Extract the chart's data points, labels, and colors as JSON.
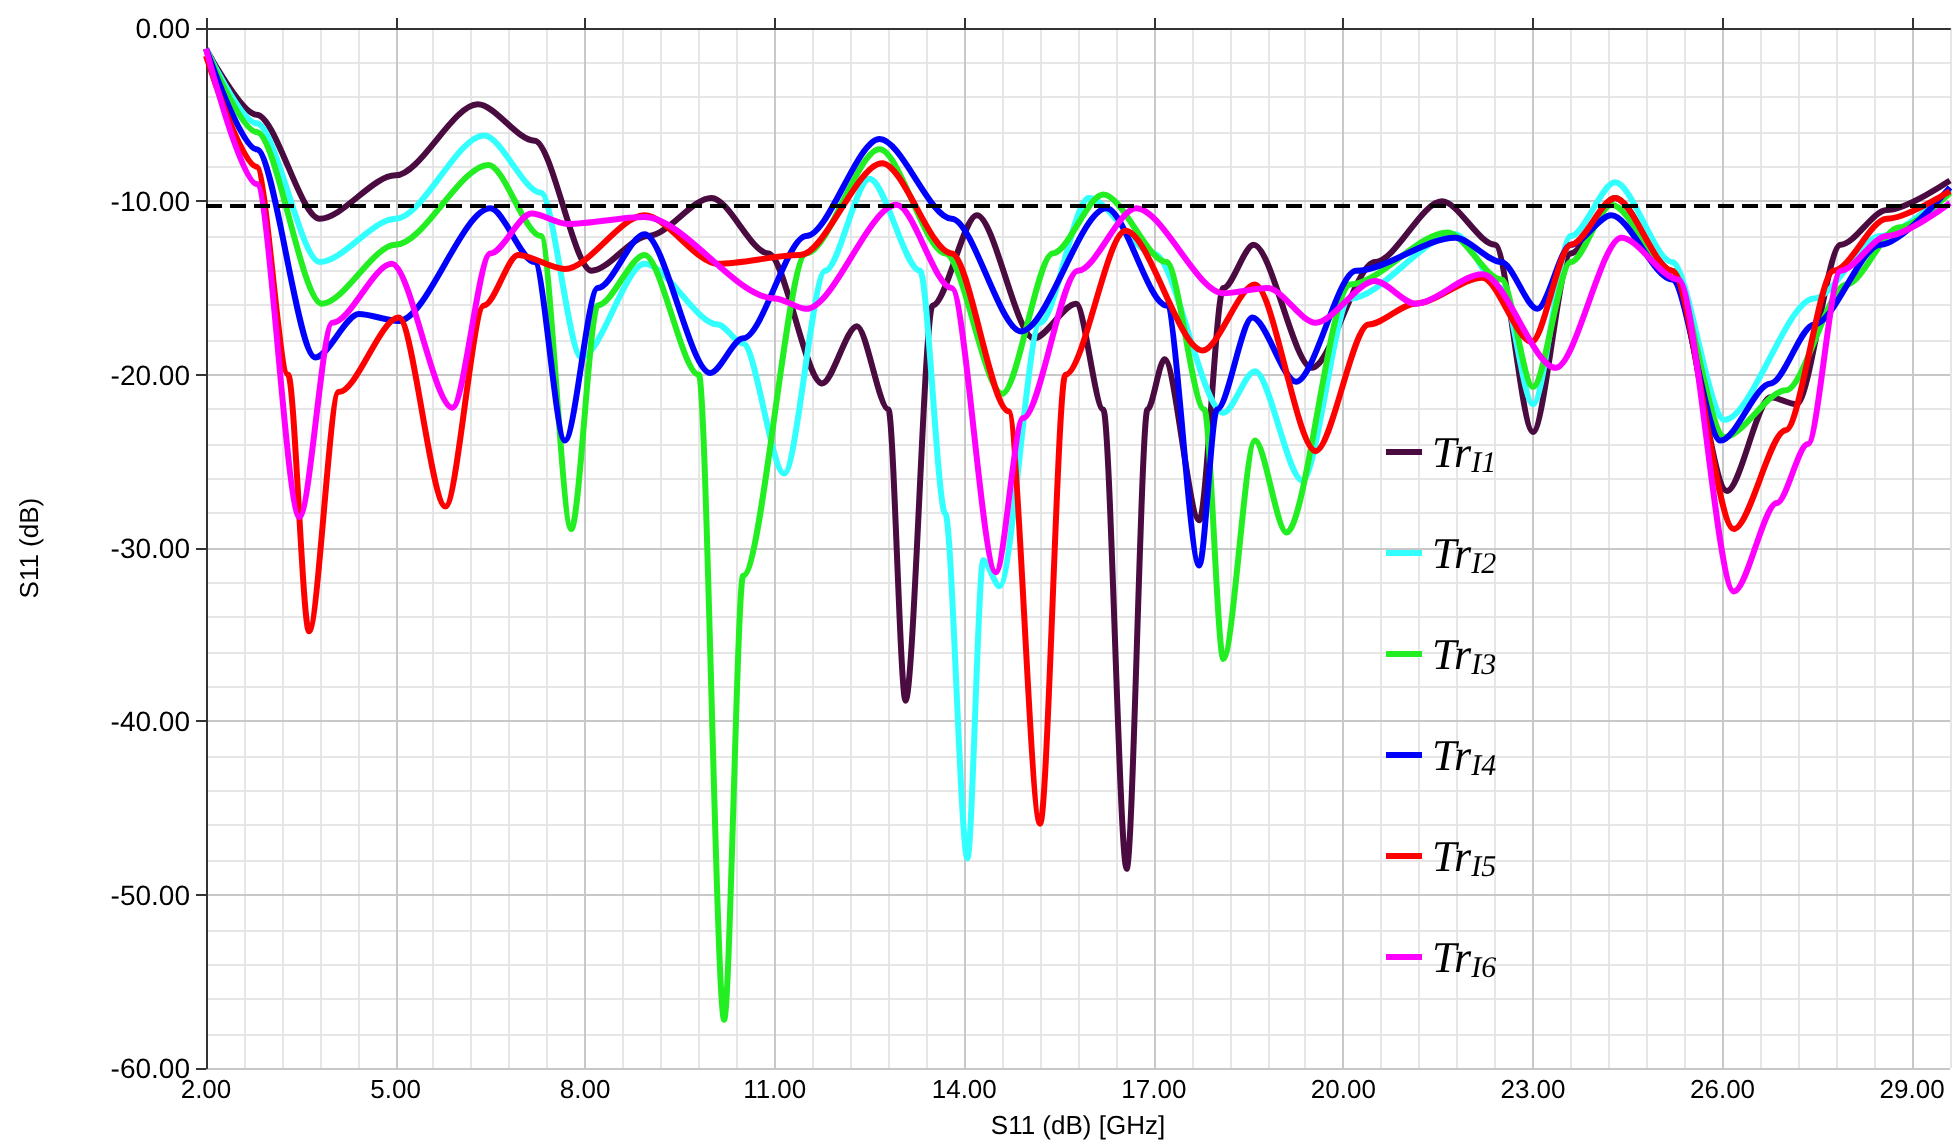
{
  "chart_data": {
    "type": "line",
    "xlabel": "S11 (dB) [GHz]",
    "ylabel": "S11 (dB)",
    "xlim": [
      2,
      29.6
    ],
    "ylim": [
      -60,
      0
    ],
    "xticks": [
      {
        "value": 2,
        "label": "2.00"
      },
      {
        "value": 5,
        "label": "5.00"
      },
      {
        "value": 8,
        "label": "8.00"
      },
      {
        "value": 11,
        "label": "11.00"
      },
      {
        "value": 14,
        "label": "14.00"
      },
      {
        "value": 17,
        "label": "17.00"
      },
      {
        "value": 20,
        "label": "20.00"
      },
      {
        "value": 23,
        "label": "23.00"
      },
      {
        "value": 26,
        "label": "26.00"
      },
      {
        "value": 29,
        "label": "29.00"
      }
    ],
    "yticks": [
      {
        "value": -60,
        "label": "-60.00"
      },
      {
        "value": -50,
        "label": "-50.00"
      },
      {
        "value": -40,
        "label": "-40.00"
      },
      {
        "value": -30,
        "label": "-30.00"
      },
      {
        "value": -20,
        "label": "-20.00"
      },
      {
        "value": -10,
        "label": "-10.00"
      },
      {
        "value": 0,
        "label": "0.00"
      }
    ],
    "grid": true,
    "legend": "right",
    "marker": "none",
    "line_style": "solid",
    "ref_lines": [
      {
        "axis": "y",
        "value": -10.2,
        "label": null,
        "color": "#000000",
        "line_style": "dashed"
      }
    ],
    "series": [
      {
        "name": "Tr$_{I1}$",
        "color": "#4a0b40",
        "x": [
          2.0,
          2.8,
          3.8,
          5.0,
          6.3,
          7.2,
          8.1,
          9.0,
          10.0,
          10.9,
          11.75,
          12.3,
          12.8,
          13.07,
          13.5,
          14.2,
          15.1,
          15.77,
          16.2,
          16.57,
          16.9,
          17.17,
          17.72,
          18.1,
          18.58,
          19.5,
          20.5,
          21.56,
          22.4,
          23.0,
          23.6,
          24.3,
          25.2,
          26.07,
          26.76,
          27.17,
          27.87,
          28.6,
          29.6
        ],
        "values": [
          -1.2,
          -5.0,
          -11.0,
          -8.5,
          -4.4,
          -6.5,
          -14.0,
          -12.0,
          -9.8,
          -13.0,
          -20.5,
          -17.2,
          -22.0,
          -38.8,
          -16.0,
          -10.8,
          -17.9,
          -15.9,
          -22.0,
          -48.5,
          -22.0,
          -19.1,
          -28.4,
          -15.0,
          -12.5,
          -19.6,
          -13.5,
          -10.0,
          -12.5,
          -23.3,
          -13.0,
          -9.8,
          -14.0,
          -26.7,
          -21.3,
          -21.7,
          -12.5,
          -10.5,
          -8.8
        ]
      },
      {
        "name": "Tr$_{I2}$",
        "color": "#33ffff",
        "x": [
          2.0,
          2.8,
          3.8,
          5.0,
          6.4,
          7.3,
          7.94,
          8.94,
          10.1,
          10.5,
          11.15,
          11.8,
          12.5,
          13.3,
          13.7,
          14.05,
          14.3,
          14.56,
          15.2,
          15.97,
          17.0,
          18.1,
          18.6,
          19.35,
          20.1,
          21.77,
          22.5,
          23.0,
          23.6,
          24.3,
          25.2,
          26.03,
          27.45,
          28.5,
          29.6
        ],
        "values": [
          -1.2,
          -5.5,
          -13.5,
          -11.0,
          -6.2,
          -9.5,
          -19.0,
          -13.6,
          -17.1,
          -18.2,
          -25.7,
          -14.0,
          -8.7,
          -14.0,
          -28.0,
          -47.9,
          -30.7,
          -32.2,
          -17.0,
          -9.8,
          -13.0,
          -22.2,
          -19.8,
          -26.1,
          -15.6,
          -11.9,
          -15.0,
          -21.7,
          -12.0,
          -8.9,
          -13.5,
          -22.6,
          -15.6,
          -12.0,
          -9.3
        ]
      },
      {
        "name": "Tr$_{I3}$",
        "color": "#22ee22",
        "x": [
          2.0,
          2.8,
          3.83,
          5.0,
          6.47,
          7.3,
          7.78,
          8.2,
          8.94,
          9.8,
          10.2,
          10.5,
          11.5,
          12.66,
          13.7,
          14.6,
          15.4,
          16.2,
          17.2,
          17.8,
          18.1,
          18.6,
          19.1,
          20.1,
          21.65,
          22.5,
          23.0,
          23.6,
          24.24,
          25.2,
          26.03,
          27.0,
          27.96,
          28.8,
          29.6
        ],
        "values": [
          -1.2,
          -6.0,
          -15.9,
          -12.5,
          -7.9,
          -12.0,
          -28.9,
          -16.0,
          -13.1,
          -20.0,
          -57.2,
          -31.6,
          -13.0,
          -7.0,
          -13.0,
          -21.1,
          -13.0,
          -9.6,
          -13.5,
          -22.0,
          -36.4,
          -23.8,
          -29.1,
          -14.8,
          -11.8,
          -14.5,
          -20.7,
          -13.5,
          -10.2,
          -14.0,
          -23.6,
          -20.9,
          -14.8,
          -11.5,
          -9.5
        ]
      },
      {
        "name": "Tr$_{I4}$",
        "color": "#0000ff",
        "x": [
          2.0,
          2.8,
          3.73,
          4.42,
          5.05,
          6.5,
          7.2,
          7.68,
          8.2,
          8.94,
          9.98,
          10.5,
          11.5,
          12.66,
          13.8,
          14.9,
          16.25,
          17.2,
          17.72,
          18.0,
          18.56,
          19.25,
          20.2,
          21.77,
          22.5,
          23.07,
          23.6,
          24.24,
          25.2,
          25.97,
          26.76,
          27.45,
          28.5,
          29.6
        ],
        "values": [
          -1.2,
          -7.0,
          -19.0,
          -16.5,
          -16.9,
          -10.4,
          -13.5,
          -23.8,
          -15.0,
          -11.9,
          -19.9,
          -17.9,
          -12.0,
          -6.4,
          -11.0,
          -17.5,
          -10.4,
          -16.0,
          -31.0,
          -22.0,
          -16.7,
          -20.4,
          -14.0,
          -12.1,
          -13.5,
          -16.2,
          -12.5,
          -10.8,
          -14.5,
          -23.8,
          -20.5,
          -17.1,
          -12.5,
          -9.2
        ]
      },
      {
        "name": "Tr$_{I5}$",
        "color": "#ff0000",
        "x": [
          2.0,
          2.8,
          3.3,
          3.63,
          4.1,
          5.05,
          5.79,
          6.4,
          6.94,
          7.68,
          8.94,
          10.1,
          11.4,
          12.7,
          13.8,
          14.7,
          15.2,
          15.6,
          16.55,
          17.77,
          18.6,
          19.56,
          20.4,
          21.14,
          22.2,
          22.98,
          23.6,
          24.3,
          25.2,
          26.18,
          27.0,
          27.76,
          28.6,
          29.6
        ],
        "values": [
          -1.6,
          -8.0,
          -20.0,
          -34.8,
          -21.0,
          -16.7,
          -27.6,
          -16.0,
          -13.1,
          -13.9,
          -10.8,
          -13.6,
          -13.1,
          -7.8,
          -13.0,
          -22.1,
          -45.9,
          -20.0,
          -11.7,
          -18.6,
          -14.8,
          -24.4,
          -17.1,
          -15.9,
          -14.4,
          -18.1,
          -12.5,
          -9.8,
          -14.0,
          -28.9,
          -23.2,
          -14.0,
          -11.0,
          -9.4
        ]
      },
      {
        "name": "Tr$_{I6}$",
        "color": "#ff00ff",
        "x": [
          2.0,
          2.8,
          3.48,
          4.0,
          4.94,
          5.9,
          6.5,
          7.15,
          7.72,
          8.94,
          11.0,
          11.5,
          12.93,
          13.8,
          14.5,
          14.93,
          15.8,
          16.72,
          18.1,
          18.8,
          19.56,
          20.5,
          21.14,
          22.2,
          23.36,
          24.4,
          25.3,
          26.18,
          26.86,
          27.35,
          27.87,
          28.6,
          29.6
        ],
        "values": [
          -1.2,
          -9.0,
          -28.2,
          -17.0,
          -13.6,
          -21.9,
          -13.0,
          -10.7,
          -11.3,
          -10.9,
          -15.6,
          -16.2,
          -10.2,
          -15.0,
          -31.4,
          -22.5,
          -14.0,
          -10.4,
          -15.3,
          -15.0,
          -17.0,
          -14.6,
          -15.9,
          -14.2,
          -19.6,
          -12.1,
          -14.5,
          -32.5,
          -27.4,
          -24.0,
          -14.0,
          -12.0,
          -10.1
        ]
      }
    ]
  }
}
